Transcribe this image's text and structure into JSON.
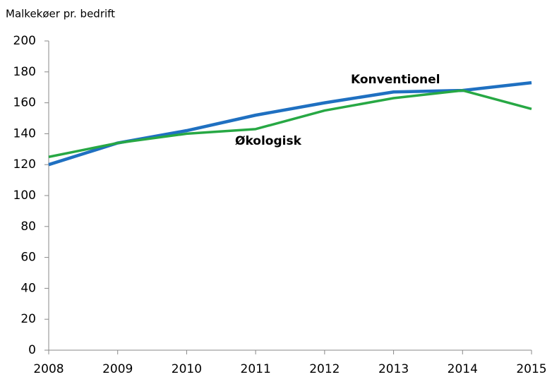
{
  "chart_data": {
    "type": "line",
    "title": "Malkekøer pr. bedrift",
    "categories": [
      "2008",
      "2009",
      "2010",
      "2011",
      "2012",
      "2013",
      "2014",
      "2015"
    ],
    "series": [
      {
        "name": "Konventionel",
        "color": "#1f70c1",
        "values": [
          120,
          134,
          142,
          152,
          160,
          167,
          168,
          173
        ]
      },
      {
        "name": "Økologisk",
        "color": "#27a844",
        "values": [
          125,
          134,
          140,
          143,
          155,
          163,
          168,
          156
        ]
      }
    ],
    "ylim": [
      0,
      200
    ],
    "yticks": [
      0,
      20,
      40,
      60,
      80,
      100,
      120,
      140,
      160,
      180,
      200
    ],
    "grid": false
  }
}
